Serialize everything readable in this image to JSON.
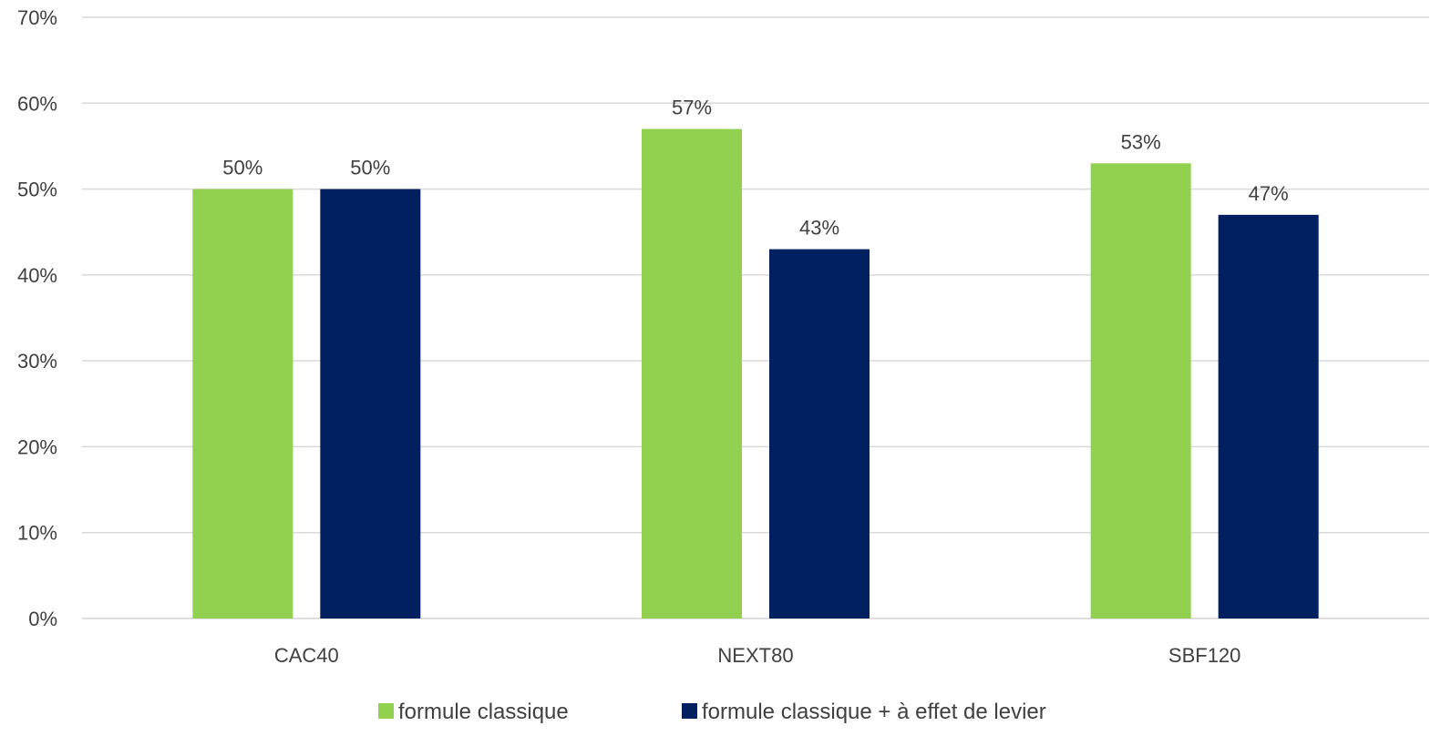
{
  "chart_data": {
    "type": "bar",
    "categories": [
      "CAC40",
      "NEXT80",
      "SBF120"
    ],
    "series": [
      {
        "name": "formule classique",
        "values": [
          50,
          57,
          53
        ],
        "labels": [
          "50%",
          "57%",
          "53%"
        ],
        "color": "#92d050"
      },
      {
        "name": "formule classique + à effet de levier",
        "values": [
          50,
          43,
          47
        ],
        "labels": [
          "50%",
          "43%",
          "47%"
        ],
        "color": "#002060"
      }
    ],
    "ylim": [
      0,
      70
    ],
    "yticks": [
      0,
      10,
      20,
      30,
      40,
      50,
      60,
      70
    ],
    "ytick_labels": [
      "0%",
      "10%",
      "20%",
      "30%",
      "40%",
      "50%",
      "60%",
      "70%"
    ],
    "grid": true,
    "legend_position": "bottom",
    "gridline_color": "#d9d9d9",
    "text_color": "#404040"
  }
}
